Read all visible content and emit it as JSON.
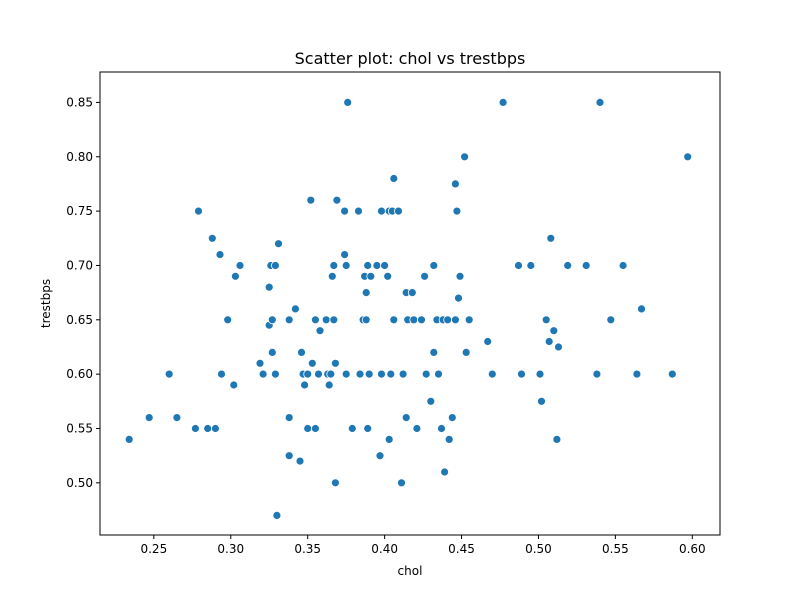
{
  "chart_data": {
    "type": "scatter",
    "title": "Scatter plot: chol vs trestbps",
    "xlabel": "chol",
    "ylabel": "trestbps",
    "xlim": [
      0.215,
      0.618
    ],
    "ylim": [
      0.452,
      0.878
    ],
    "xticks": [
      "0.25",
      "0.30",
      "0.35",
      "0.40",
      "0.45",
      "0.50",
      "0.55",
      "0.60"
    ],
    "yticks": [
      "0.50",
      "0.55",
      "0.60",
      "0.65",
      "0.70",
      "0.75",
      "0.80",
      "0.85"
    ],
    "xtick_values": [
      0.25,
      0.3,
      0.35,
      0.4,
      0.45,
      0.5,
      0.55,
      0.6
    ],
    "ytick_values": [
      0.5,
      0.55,
      0.6,
      0.65,
      0.7,
      0.75,
      0.8,
      0.85
    ],
    "grid": false,
    "marker_color": "#1f77b4",
    "points": [
      [
        0.234,
        0.54
      ],
      [
        0.247,
        0.56
      ],
      [
        0.26,
        0.6
      ],
      [
        0.265,
        0.56
      ],
      [
        0.277,
        0.55
      ],
      [
        0.279,
        0.75
      ],
      [
        0.285,
        0.55
      ],
      [
        0.288,
        0.725
      ],
      [
        0.29,
        0.55
      ],
      [
        0.293,
        0.71
      ],
      [
        0.294,
        0.6
      ],
      [
        0.298,
        0.65
      ],
      [
        0.302,
        0.59
      ],
      [
        0.303,
        0.69
      ],
      [
        0.306,
        0.7
      ],
      [
        0.319,
        0.61
      ],
      [
        0.321,
        0.6
      ],
      [
        0.325,
        0.68
      ],
      [
        0.325,
        0.645
      ],
      [
        0.326,
        0.7
      ],
      [
        0.327,
        0.62
      ],
      [
        0.327,
        0.65
      ],
      [
        0.329,
        0.6
      ],
      [
        0.329,
        0.7
      ],
      [
        0.33,
        0.47
      ],
      [
        0.331,
        0.72
      ],
      [
        0.338,
        0.525
      ],
      [
        0.338,
        0.56
      ],
      [
        0.338,
        0.65
      ],
      [
        0.342,
        0.66
      ],
      [
        0.345,
        0.52
      ],
      [
        0.346,
        0.62
      ],
      [
        0.347,
        0.6
      ],
      [
        0.348,
        0.59
      ],
      [
        0.35,
        0.6
      ],
      [
        0.35,
        0.55
      ],
      [
        0.352,
        0.76
      ],
      [
        0.353,
        0.61
      ],
      [
        0.355,
        0.55
      ],
      [
        0.355,
        0.65
      ],
      [
        0.357,
        0.6
      ],
      [
        0.358,
        0.64
      ],
      [
        0.362,
        0.65
      ],
      [
        0.363,
        0.6
      ],
      [
        0.364,
        0.59
      ],
      [
        0.365,
        0.6
      ],
      [
        0.366,
        0.69
      ],
      [
        0.367,
        0.65
      ],
      [
        0.367,
        0.7
      ],
      [
        0.368,
        0.5
      ],
      [
        0.368,
        0.61
      ],
      [
        0.369,
        0.76
      ],
      [
        0.374,
        0.75
      ],
      [
        0.374,
        0.71
      ],
      [
        0.375,
        0.7
      ],
      [
        0.375,
        0.6
      ],
      [
        0.376,
        0.85
      ],
      [
        0.379,
        0.55
      ],
      [
        0.383,
        0.75
      ],
      [
        0.384,
        0.6
      ],
      [
        0.386,
        0.65
      ],
      [
        0.387,
        0.69
      ],
      [
        0.388,
        0.675
      ],
      [
        0.388,
        0.65
      ],
      [
        0.389,
        0.7
      ],
      [
        0.389,
        0.55
      ],
      [
        0.39,
        0.6
      ],
      [
        0.391,
        0.69
      ],
      [
        0.395,
        0.7
      ],
      [
        0.397,
        0.525
      ],
      [
        0.398,
        0.75
      ],
      [
        0.398,
        0.6
      ],
      [
        0.4,
        0.7
      ],
      [
        0.402,
        0.69
      ],
      [
        0.403,
        0.54
      ],
      [
        0.403,
        0.75
      ],
      [
        0.404,
        0.6
      ],
      [
        0.405,
        0.75
      ],
      [
        0.406,
        0.78
      ],
      [
        0.406,
        0.65
      ],
      [
        0.409,
        0.75
      ],
      [
        0.411,
        0.5
      ],
      [
        0.412,
        0.6
      ],
      [
        0.414,
        0.675
      ],
      [
        0.414,
        0.56
      ],
      [
        0.415,
        0.65
      ],
      [
        0.418,
        0.675
      ],
      [
        0.419,
        0.65
      ],
      [
        0.421,
        0.55
      ],
      [
        0.424,
        0.65
      ],
      [
        0.426,
        0.69
      ],
      [
        0.427,
        0.6
      ],
      [
        0.43,
        0.575
      ],
      [
        0.432,
        0.7
      ],
      [
        0.432,
        0.62
      ],
      [
        0.434,
        0.65
      ],
      [
        0.435,
        0.6
      ],
      [
        0.437,
        0.55
      ],
      [
        0.438,
        0.65
      ],
      [
        0.439,
        0.51
      ],
      [
        0.441,
        0.65
      ],
      [
        0.442,
        0.54
      ],
      [
        0.444,
        0.56
      ],
      [
        0.446,
        0.775
      ],
      [
        0.446,
        0.65
      ],
      [
        0.447,
        0.75
      ],
      [
        0.448,
        0.67
      ],
      [
        0.449,
        0.69
      ],
      [
        0.452,
        0.8
      ],
      [
        0.453,
        0.62
      ],
      [
        0.455,
        0.65
      ],
      [
        0.467,
        0.63
      ],
      [
        0.47,
        0.6
      ],
      [
        0.477,
        0.85
      ],
      [
        0.487,
        0.7
      ],
      [
        0.489,
        0.6
      ],
      [
        0.495,
        0.7
      ],
      [
        0.501,
        0.6
      ],
      [
        0.502,
        0.575
      ],
      [
        0.505,
        0.65
      ],
      [
        0.507,
        0.63
      ],
      [
        0.508,
        0.725
      ],
      [
        0.51,
        0.64
      ],
      [
        0.512,
        0.54
      ],
      [
        0.513,
        0.625
      ],
      [
        0.519,
        0.7
      ],
      [
        0.531,
        0.7
      ],
      [
        0.538,
        0.6
      ],
      [
        0.54,
        0.85
      ],
      [
        0.547,
        0.65
      ],
      [
        0.555,
        0.7
      ],
      [
        0.564,
        0.6
      ],
      [
        0.567,
        0.66
      ],
      [
        0.587,
        0.6
      ],
      [
        0.597,
        0.8
      ]
    ]
  }
}
